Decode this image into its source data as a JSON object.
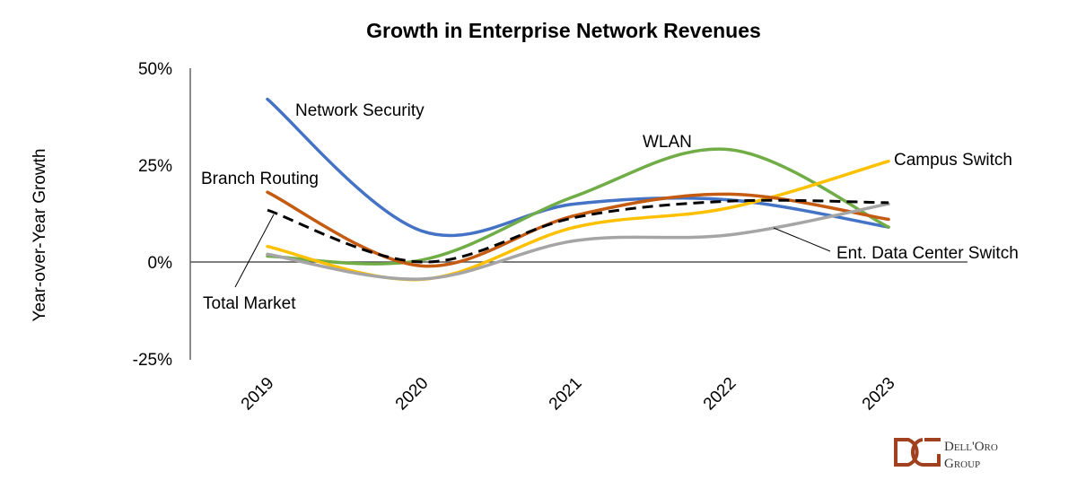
{
  "chart_data": {
    "type": "line",
    "title": "Growth in Enterprise Network Revenues",
    "xlabel": "",
    "ylabel": "Year-over-Year Growth",
    "categories": [
      "2019",
      "2020",
      "2021",
      "2022",
      "2023"
    ],
    "yticks": [
      "50%",
      "25%",
      "0%",
      "-25%"
    ],
    "ytick_values": [
      50,
      25,
      0,
      -25
    ],
    "ylim": [
      -25,
      50
    ],
    "grid": false,
    "series": [
      {
        "name": "Network Security",
        "color": "#4472C4",
        "dashed": false,
        "values": [
          42,
          8,
          15,
          16,
          9
        ]
      },
      {
        "name": "WLAN",
        "color": "#70AD47",
        "dashed": false,
        "values": [
          1.5,
          0.5,
          17,
          29,
          9
        ]
      },
      {
        "name": "Campus Switch",
        "color": "#FFC000",
        "dashed": false,
        "values": [
          4,
          -4.5,
          9,
          14,
          26
        ]
      },
      {
        "name": "Branch Routing",
        "color": "#C55A11",
        "dashed": false,
        "values": [
          18,
          -1,
          12,
          17.5,
          11
        ]
      },
      {
        "name": "Ent. Data Center Switch",
        "color": "#A5A5A5",
        "dashed": false,
        "values": [
          2,
          -4.4,
          5.5,
          7,
          15
        ]
      },
      {
        "name": "Total Market",
        "color": "#000000",
        "dashed": true,
        "values": [
          13.4,
          0,
          11.5,
          15.7,
          15.3
        ]
      }
    ]
  },
  "logo": {
    "line1": "Dell'Oro",
    "line2": "Group",
    "color": "#A0401E"
  }
}
